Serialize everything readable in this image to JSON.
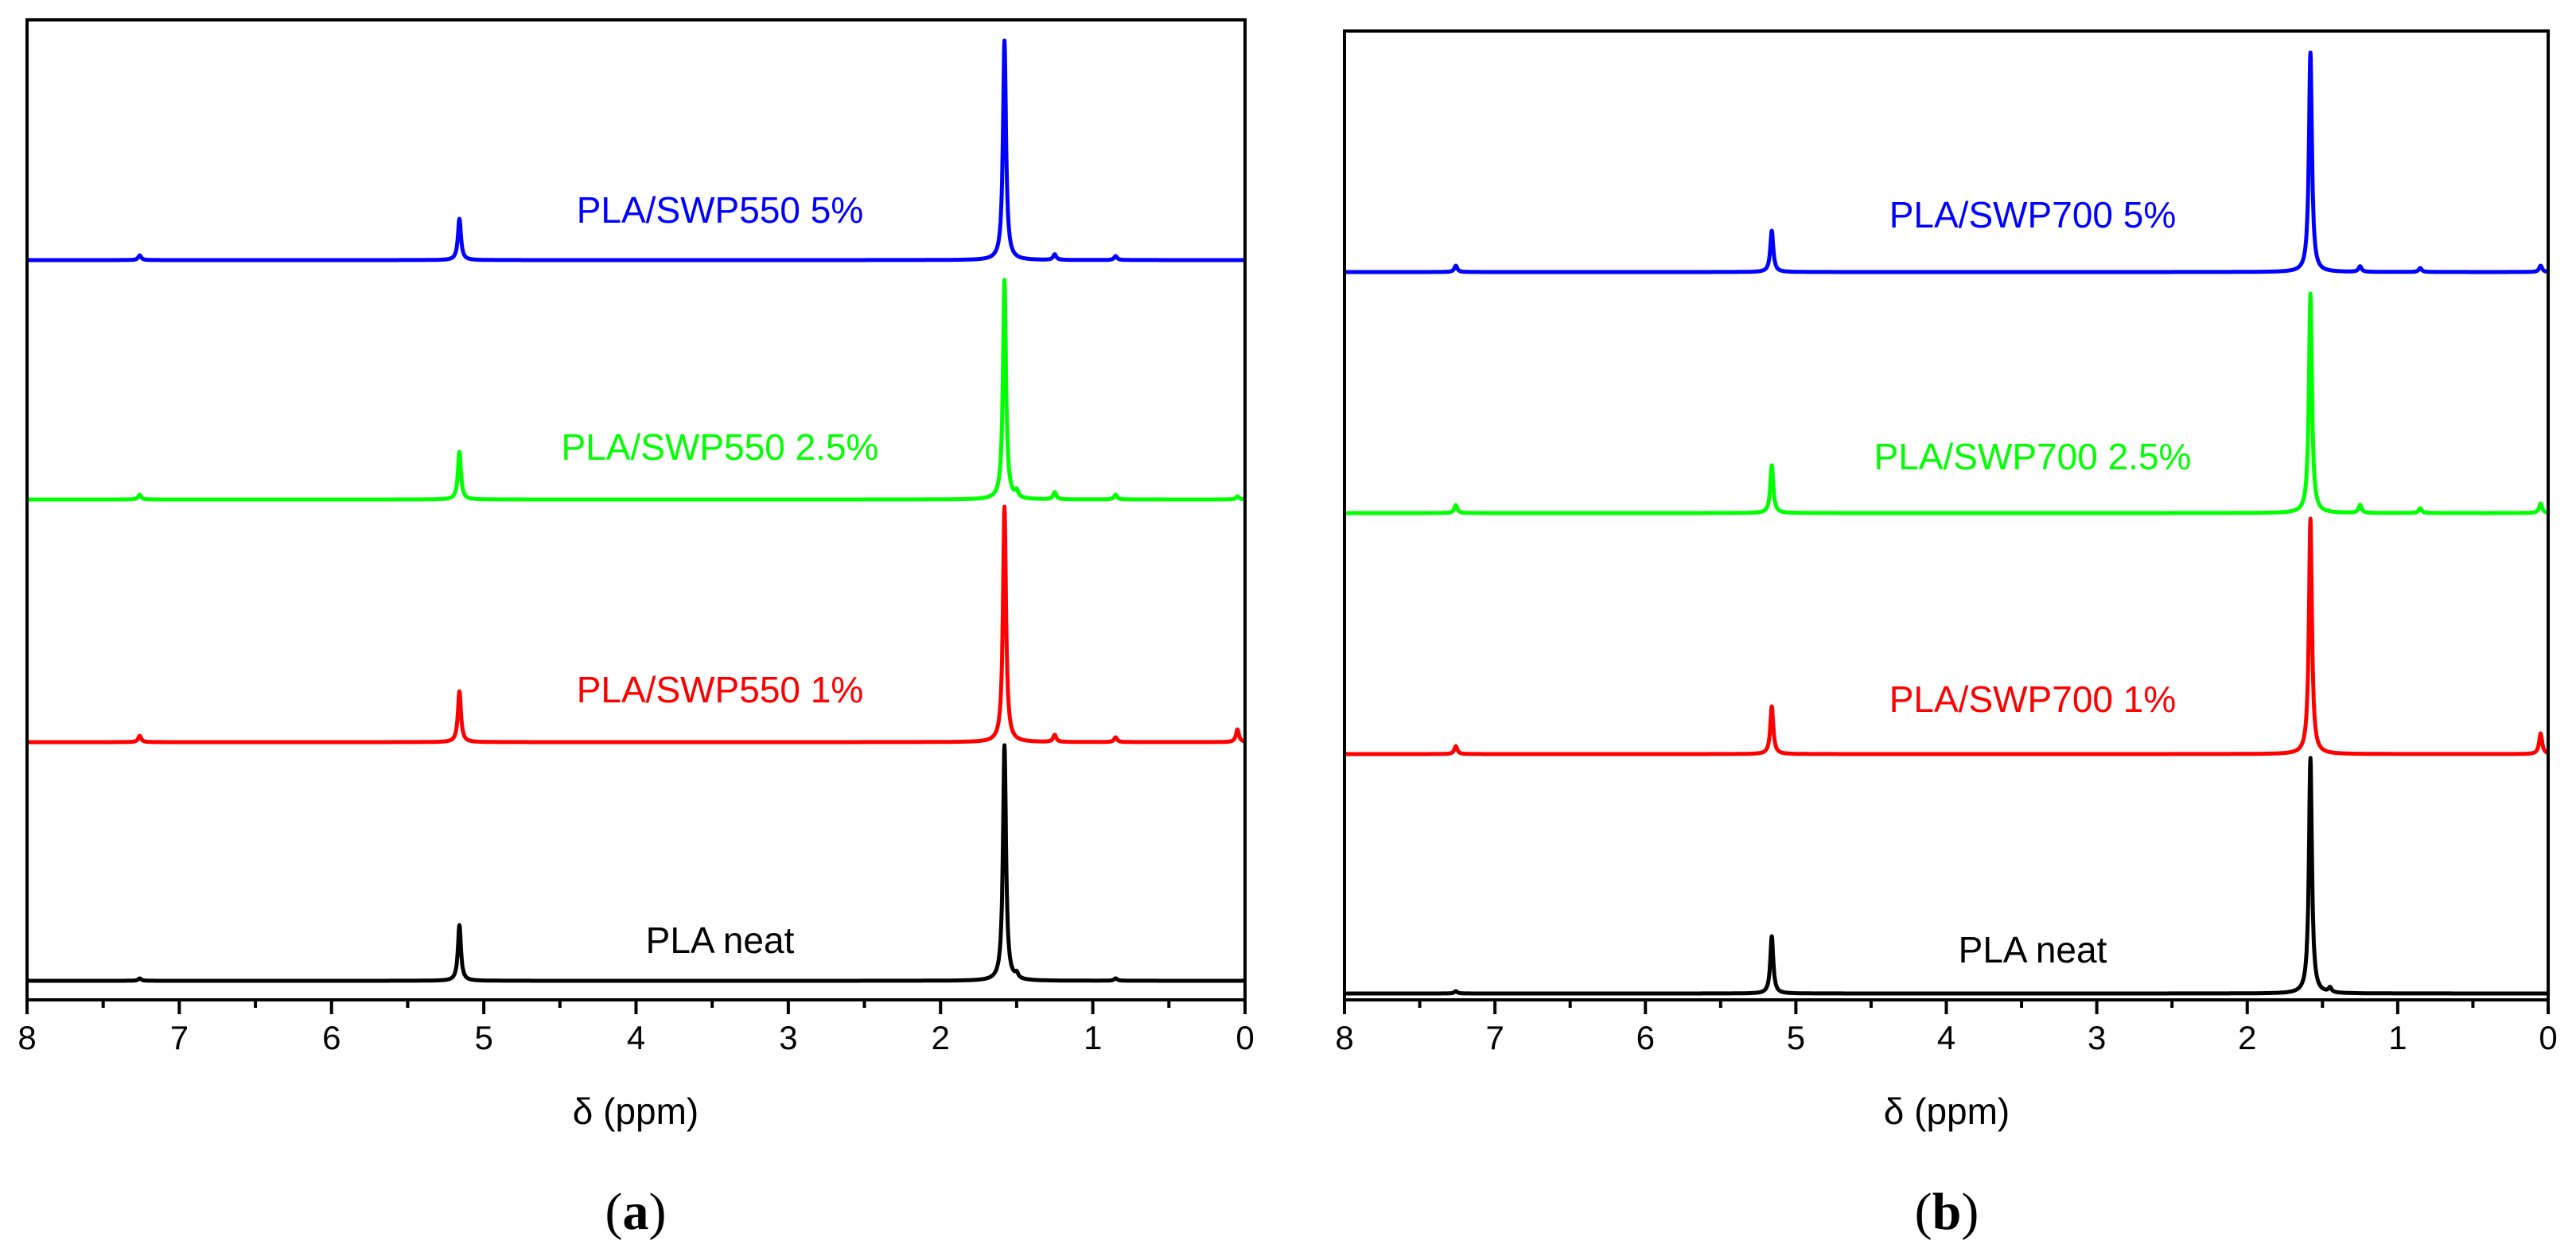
{
  "chart_data": [
    {
      "type": "line",
      "panel": "a",
      "caption": {
        "open": "(",
        "letter": "a",
        "close": ")"
      },
      "xlabel": "δ (ppm)",
      "xlim": [
        8,
        0
      ],
      "x_reversed": true,
      "xticks": [
        "8",
        "7",
        "6",
        "5",
        "4",
        "3",
        "2",
        "1",
        "0"
      ],
      "ylabel": "",
      "stacked": true,
      "series": [
        {
          "name": "PLA/SWP550 5%",
          "color": "#0000ff",
          "peaks": [
            {
              "ppm": 7.26,
              "h": 0.3
            },
            {
              "ppm": 5.16,
              "h": 2.6
            },
            {
              "ppm": 1.58,
              "h": 13.8
            },
            {
              "ppm": 1.25,
              "h": 0.35
            },
            {
              "ppm": 0.85,
              "h": 0.25
            }
          ]
        },
        {
          "name": "PLA/SWP550 2.5%",
          "color": "#00ff00",
          "peaks": [
            {
              "ppm": 7.26,
              "h": 0.3
            },
            {
              "ppm": 5.16,
              "h": 3.0
            },
            {
              "ppm": 1.58,
              "h": 13.8
            },
            {
              "ppm": 1.5,
              "h": 0.4
            },
            {
              "ppm": 1.25,
              "h": 0.45
            },
            {
              "ppm": 0.85,
              "h": 0.3
            },
            {
              "ppm": 0.05,
              "h": 0.2
            }
          ]
        },
        {
          "name": "PLA/SWP550 1%",
          "color": "#ff0000",
          "peaks": [
            {
              "ppm": 7.26,
              "h": 0.4
            },
            {
              "ppm": 5.16,
              "h": 3.2
            },
            {
              "ppm": 1.58,
              "h": 14.8
            },
            {
              "ppm": 1.25,
              "h": 0.45
            },
            {
              "ppm": 0.85,
              "h": 0.3
            },
            {
              "ppm": 0.05,
              "h": 0.8
            }
          ]
        },
        {
          "name": "PLA neat",
          "color": "#000000",
          "peaks": [
            {
              "ppm": 7.26,
              "h": 0.15
            },
            {
              "ppm": 5.16,
              "h": 3.5
            },
            {
              "ppm": 1.58,
              "h": 14.8
            },
            {
              "ppm": 1.5,
              "h": 0.3
            },
            {
              "ppm": 0.85,
              "h": 0.15
            }
          ]
        }
      ]
    },
    {
      "type": "line",
      "panel": "b",
      "caption": {
        "open": "(",
        "letter": "b",
        "close": ")"
      },
      "xlabel": "δ (ppm)",
      "xlim": [
        8,
        0
      ],
      "x_reversed": true,
      "xticks": [
        "8",
        "7",
        "6",
        "5",
        "4",
        "3",
        "2",
        "1",
        "0"
      ],
      "ylabel": "",
      "stacked": true,
      "series": [
        {
          "name": "PLA/SWP700 5%",
          "color": "#0000ff",
          "peaks": [
            {
              "ppm": 7.26,
              "h": 0.4
            },
            {
              "ppm": 5.16,
              "h": 2.6
            },
            {
              "ppm": 1.58,
              "h": 13.8
            },
            {
              "ppm": 1.25,
              "h": 0.35
            },
            {
              "ppm": 0.85,
              "h": 0.25
            },
            {
              "ppm": 0.05,
              "h": 0.4
            }
          ]
        },
        {
          "name": "PLA/SWP700 2.5%",
          "color": "#00ff00",
          "peaks": [
            {
              "ppm": 7.26,
              "h": 0.5
            },
            {
              "ppm": 5.16,
              "h": 3.0
            },
            {
              "ppm": 1.58,
              "h": 13.8
            },
            {
              "ppm": 1.25,
              "h": 0.5
            },
            {
              "ppm": 0.85,
              "h": 0.3
            },
            {
              "ppm": 0.05,
              "h": 0.6
            }
          ]
        },
        {
          "name": "PLA/SWP700 1%",
          "color": "#ff0000",
          "peaks": [
            {
              "ppm": 7.26,
              "h": 0.5
            },
            {
              "ppm": 5.16,
              "h": 3.0
            },
            {
              "ppm": 1.58,
              "h": 14.8
            },
            {
              "ppm": 0.05,
              "h": 1.3
            }
          ]
        },
        {
          "name": "PLA neat",
          "color": "#000000",
          "peaks": [
            {
              "ppm": 7.26,
              "h": 0.15
            },
            {
              "ppm": 5.16,
              "h": 3.6
            },
            {
              "ppm": 1.58,
              "h": 14.8
            },
            {
              "ppm": 1.45,
              "h": 0.3
            }
          ]
        }
      ]
    }
  ]
}
